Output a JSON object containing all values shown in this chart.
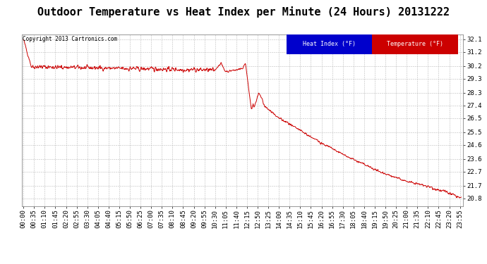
{
  "title": "Outdoor Temperature vs Heat Index per Minute (24 Hours) 20131222",
  "copyright_text": "Copyright 2013 Cartronics.com",
  "legend_heat_index": "Heat Index (°F)",
  "legend_temperature": "Temperature (°F)",
  "y_ticks": [
    20.8,
    21.7,
    22.7,
    23.6,
    24.6,
    25.5,
    26.5,
    27.4,
    28.3,
    29.3,
    30.2,
    31.2,
    32.1
  ],
  "ylim": [
    20.25,
    32.45
  ],
  "background_color": "#ffffff",
  "line_color": "#cc0000",
  "heat_index_legend_bg": "#0000cc",
  "temperature_legend_bg": "#cc0000",
  "title_fontsize": 11,
  "axis_fontsize": 6.5,
  "copyright_fontsize": 6.5,
  "grid_color": "#bbbbbb",
  "total_minutes": 1440
}
